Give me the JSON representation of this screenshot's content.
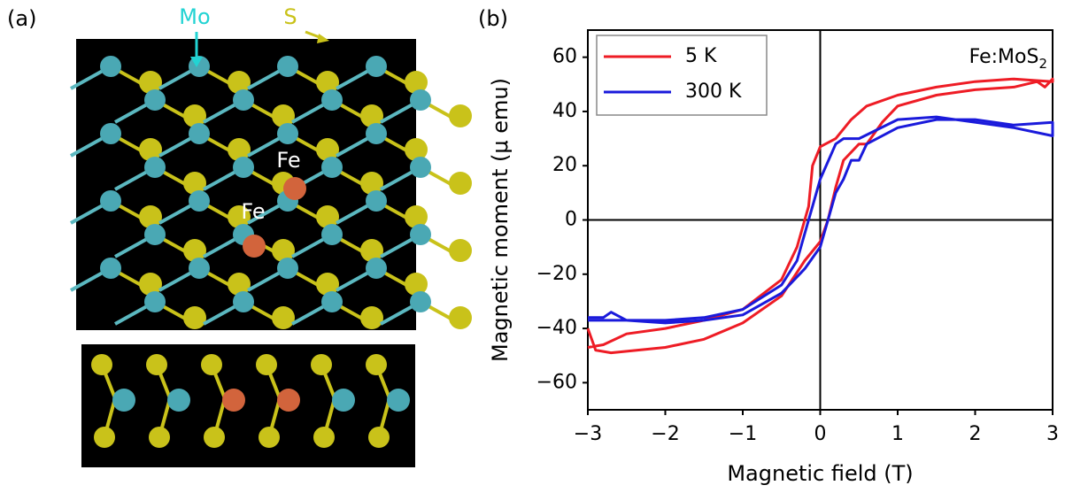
{
  "panel_labels": [
    "(a)",
    "(b)"
  ],
  "structure": {
    "labels": [
      "Mo",
      "S",
      "Fe",
      "Fe"
    ]
  },
  "chart_data": {
    "type": "line",
    "x_label": "Magnetic field (T)",
    "y_label": "Magnetic moment (μ emu)",
    "annotation": {
      "text": "Fe:MoS",
      "subscript": "2"
    },
    "xlim": [
      -3,
      3
    ],
    "xticks": [
      {
        "value": -3,
        "label": "−3"
      },
      {
        "value": -2,
        "label": "−2"
      },
      {
        "value": -1,
        "label": "−1"
      },
      0,
      1,
      2,
      3
    ],
    "ylim": [
      -70,
      70
    ],
    "yticks": [
      {
        "value": -60,
        "label": "−60"
      },
      {
        "value": -40,
        "label": "−40"
      },
      {
        "value": -20,
        "label": "−20"
      },
      0,
      20,
      40,
      60
    ],
    "legend": "upper left",
    "series": [
      {
        "name": "5 K",
        "color": "#ee1c25",
        "x": [
          -3,
          -2.9,
          -2.7,
          -2,
          -1.5,
          -1,
          -0.5,
          -0.2,
          0,
          0.1,
          0.2,
          0.3,
          0.5,
          0.6,
          0.8,
          1,
          1.5,
          2,
          2.5,
          2.8,
          2.9,
          3,
          3,
          2.5,
          2,
          1.5,
          1,
          0.6,
          0.4,
          0.2,
          0,
          -0.1,
          -0.15,
          -0.2,
          -0.3,
          -0.5,
          -1,
          -1.5,
          -2,
          -2.5,
          -2.8,
          -3
        ],
        "values": [
          -40,
          -48,
          -49,
          -47,
          -44,
          -38,
          -28,
          -15,
          -8,
          0,
          12,
          22,
          28,
          28,
          36,
          42,
          46,
          48,
          49,
          51,
          49,
          52,
          51,
          52,
          51,
          49,
          46,
          42,
          37,
          30,
          27,
          20,
          5,
          0,
          -10,
          -22,
          -33,
          -37,
          -40,
          -42,
          -46,
          -47
        ]
      },
      {
        "name": "300 K",
        "color": "#1a1adb",
        "x": [
          -3,
          -2.8,
          -2.7,
          -2.5,
          -2,
          -1.5,
          -1,
          -0.5,
          -0.2,
          0,
          0.1,
          0.2,
          0.3,
          0.4,
          0.5,
          0.6,
          1,
          1.5,
          2,
          2.5,
          3,
          3,
          2.5,
          2,
          1.5,
          1,
          0.5,
          0.3,
          0.2,
          0,
          -0.1,
          -0.15,
          -0.3,
          -0.5,
          -1,
          -1.5,
          -2,
          -3
        ],
        "values": [
          -36,
          -36,
          -34,
          -37,
          -38,
          -37,
          -35,
          -27,
          -18,
          -10,
          0,
          10,
          15,
          22,
          22,
          28,
          34,
          37,
          37,
          35,
          36,
          31,
          34,
          36,
          38,
          37,
          30,
          30,
          28,
          15,
          5,
          0,
          -15,
          -24,
          -33,
          -36,
          -37,
          -37
        ]
      }
    ]
  }
}
